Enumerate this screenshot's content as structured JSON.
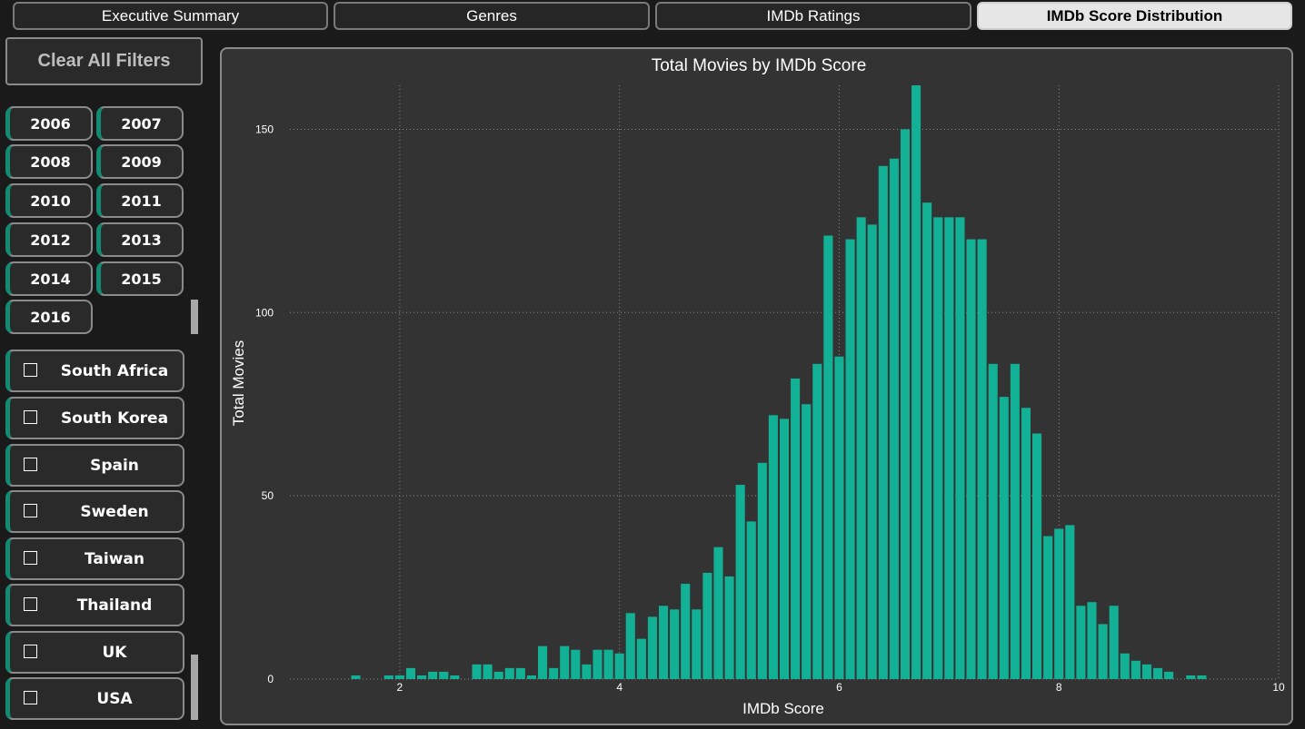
{
  "tabs": [
    {
      "label": "Executive Summary",
      "active": false
    },
    {
      "label": "Genres",
      "active": false
    },
    {
      "label": "IMDb Ratings",
      "active": false
    },
    {
      "label": "IMDb Score Distribution",
      "active": true
    }
  ],
  "filters": {
    "clear_label": "Clear All Filters",
    "years": [
      "2006",
      "2007",
      "2008",
      "2009",
      "2010",
      "2011",
      "2012",
      "2013",
      "2014",
      "2015",
      "2016"
    ],
    "countries": [
      "South Africa",
      "South Korea",
      "Spain",
      "Sweden",
      "Taiwan",
      "Thailand",
      "UK",
      "USA"
    ]
  },
  "colors": {
    "bar": "#12b195",
    "accent": "#138a72",
    "panel": "#333333"
  },
  "chart_data": {
    "type": "bar",
    "title": "Total Movies by IMDb Score",
    "xlabel": "IMDb Score",
    "ylabel": "Total Movies",
    "xlim": [
      1,
      10
    ],
    "ylim": [
      0,
      162
    ],
    "x_ticks": [
      2,
      4,
      6,
      8,
      10
    ],
    "y_ticks": [
      0,
      50,
      100,
      150
    ],
    "grid": true,
    "x": [
      1.6,
      1.9,
      2.0,
      2.1,
      2.2,
      2.3,
      2.4,
      2.5,
      2.7,
      2.8,
      2.9,
      3.0,
      3.1,
      3.2,
      3.3,
      3.4,
      3.5,
      3.6,
      3.7,
      3.8,
      3.9,
      4.0,
      4.1,
      4.2,
      4.3,
      4.4,
      4.5,
      4.6,
      4.7,
      4.8,
      4.9,
      5.0,
      5.1,
      5.2,
      5.3,
      5.4,
      5.5,
      5.6,
      5.7,
      5.8,
      5.9,
      6.0,
      6.1,
      6.2,
      6.3,
      6.4,
      6.5,
      6.6,
      6.7,
      6.8,
      6.9,
      7.0,
      7.1,
      7.2,
      7.3,
      7.4,
      7.5,
      7.6,
      7.7,
      7.8,
      7.9,
      8.0,
      8.1,
      8.2,
      8.3,
      8.4,
      8.5,
      8.6,
      8.7,
      8.8,
      8.9,
      9.0,
      9.2,
      9.3
    ],
    "values": [
      1,
      1,
      1,
      3,
      1,
      2,
      2,
      1,
      4,
      4,
      2,
      3,
      3,
      1,
      9,
      3,
      9,
      8,
      4,
      8,
      8,
      7,
      18,
      11,
      17,
      20,
      19,
      26,
      19,
      29,
      36,
      28,
      53,
      43,
      59,
      72,
      71,
      82,
      75,
      86,
      121,
      88,
      120,
      126,
      124,
      140,
      142,
      150,
      162,
      130,
      126,
      126,
      126,
      120,
      120,
      86,
      77,
      86,
      74,
      67,
      39,
      41,
      42,
      20,
      21,
      15,
      20,
      7,
      5,
      4,
      3,
      2,
      1,
      1
    ]
  }
}
